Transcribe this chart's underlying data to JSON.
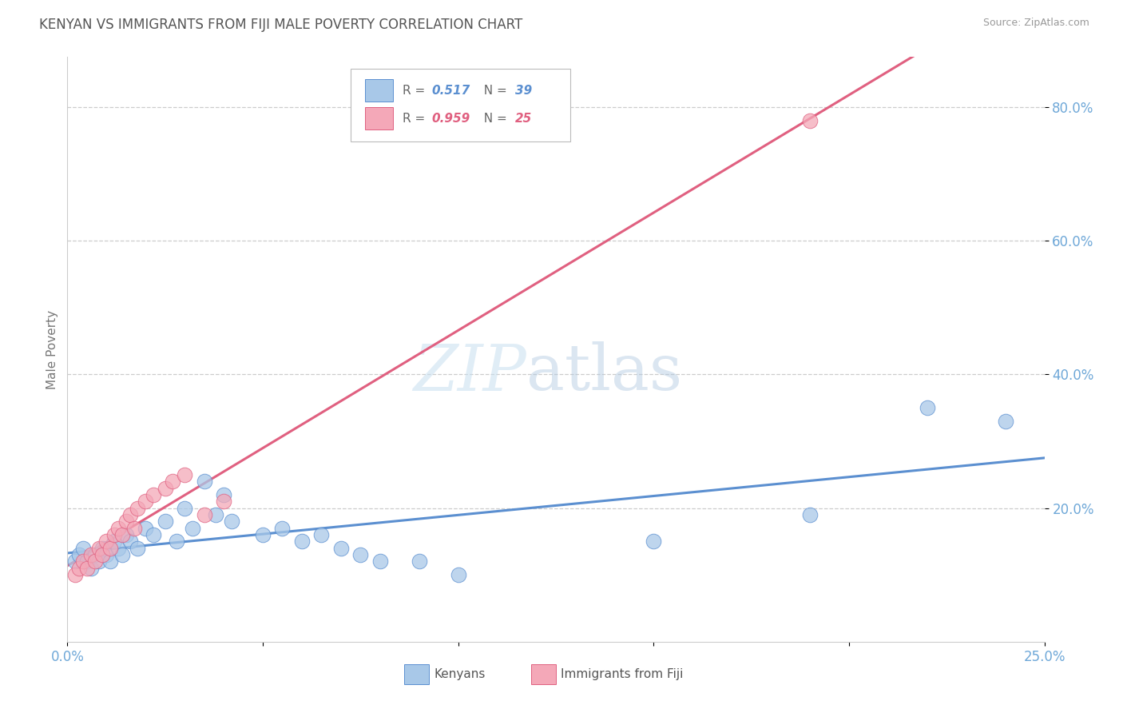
{
  "title": "KENYAN VS IMMIGRANTS FROM FIJI MALE POVERTY CORRELATION CHART",
  "source": "Source: ZipAtlas.com",
  "ylabel_label": "Male Poverty",
  "xlim": [
    0.0,
    0.25
  ],
  "ylim": [
    0.0,
    0.875
  ],
  "yticks": [
    0.2,
    0.4,
    0.6,
    0.8
  ],
  "ytick_labels": [
    "20.0%",
    "40.0%",
    "60.0%",
    "80.0%"
  ],
  "legend1_R": "0.517",
  "legend1_N": "39",
  "legend2_R": "0.959",
  "legend2_N": "25",
  "blue_color": "#A8C8E8",
  "pink_color": "#F4A8B8",
  "blue_line_color": "#5B8FD0",
  "pink_line_color": "#E06080",
  "blue_tick_color": "#6FA8D8",
  "kenyan_x": [
    0.002,
    0.003,
    0.004,
    0.005,
    0.006,
    0.007,
    0.008,
    0.009,
    0.01,
    0.011,
    0.012,
    0.013,
    0.014,
    0.015,
    0.016,
    0.018,
    0.02,
    0.022,
    0.025,
    0.028,
    0.03,
    0.032,
    0.035,
    0.038,
    0.04,
    0.042,
    0.05,
    0.055,
    0.06,
    0.065,
    0.07,
    0.075,
    0.08,
    0.09,
    0.1,
    0.15,
    0.19,
    0.22,
    0.24
  ],
  "kenyan_y": [
    0.12,
    0.13,
    0.14,
    0.12,
    0.11,
    0.13,
    0.12,
    0.14,
    0.13,
    0.12,
    0.15,
    0.14,
    0.13,
    0.16,
    0.15,
    0.14,
    0.17,
    0.16,
    0.18,
    0.15,
    0.2,
    0.17,
    0.24,
    0.19,
    0.22,
    0.18,
    0.16,
    0.17,
    0.15,
    0.16,
    0.14,
    0.13,
    0.12,
    0.12,
    0.1,
    0.15,
    0.19,
    0.35,
    0.33
  ],
  "fiji_x": [
    0.002,
    0.003,
    0.004,
    0.005,
    0.006,
    0.007,
    0.008,
    0.009,
    0.01,
    0.011,
    0.012,
    0.013,
    0.014,
    0.015,
    0.016,
    0.017,
    0.018,
    0.02,
    0.022,
    0.025,
    0.027,
    0.03,
    0.035,
    0.04,
    0.19
  ],
  "fiji_y": [
    0.1,
    0.11,
    0.12,
    0.11,
    0.13,
    0.12,
    0.14,
    0.13,
    0.15,
    0.14,
    0.16,
    0.17,
    0.16,
    0.18,
    0.19,
    0.17,
    0.2,
    0.21,
    0.22,
    0.23,
    0.24,
    0.25,
    0.19,
    0.21,
    0.78
  ],
  "watermark_zip": "ZIP",
  "watermark_atlas": "atlas",
  "background_color": "#FFFFFF"
}
